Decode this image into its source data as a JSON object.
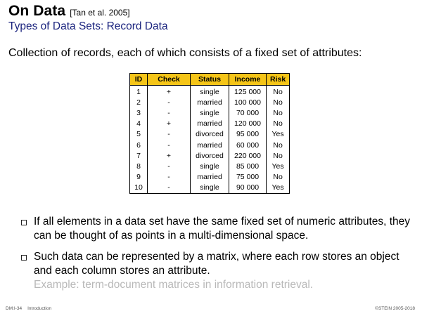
{
  "header": {
    "title": "On Data",
    "citation": "[Tan et al. 2005]",
    "subtitle": "Types of Data Sets: Record Data"
  },
  "lead": "Collection of records, each of which consists of a fixed set of attributes:",
  "table": {
    "columns": [
      "ID",
      "Check",
      "Status",
      "Income",
      "Risk"
    ],
    "rows": [
      [
        "1",
        "+",
        "single",
        "125 000",
        "No"
      ],
      [
        "2",
        "-",
        "married",
        "100 000",
        "No"
      ],
      [
        "3",
        "-",
        "single",
        "70 000",
        "No"
      ],
      [
        "4",
        "+",
        "married",
        "120 000",
        "No"
      ],
      [
        "5",
        "-",
        "divorced",
        "95 000",
        "Yes"
      ],
      [
        "6",
        "-",
        "married",
        "60 000",
        "No"
      ],
      [
        "7",
        "+",
        "divorced",
        "220 000",
        "No"
      ],
      [
        "8",
        "-",
        "single",
        "85 000",
        "Yes"
      ],
      [
        "9",
        "-",
        "married",
        "75 000",
        "No"
      ],
      [
        "10",
        "-",
        "single",
        "90 000",
        "Yes"
      ]
    ]
  },
  "bullets": [
    "If all elements in a data set have the same fixed set of numeric attributes, they can be thought of as points in a multi-dimensional space.",
    "Such data can be represented by a matrix, where each row stores an object and each column stores an attribute."
  ],
  "example": "Example: term-document matrices in information retrieval.",
  "footer": {
    "slide": "DM:I-34",
    "section": "Introduction",
    "copyright": "©STEIN 2005-2018"
  },
  "colors": {
    "header_fill": "#f5c518",
    "subtitle": "#1a237e",
    "example_text": "#b8b8b8"
  }
}
